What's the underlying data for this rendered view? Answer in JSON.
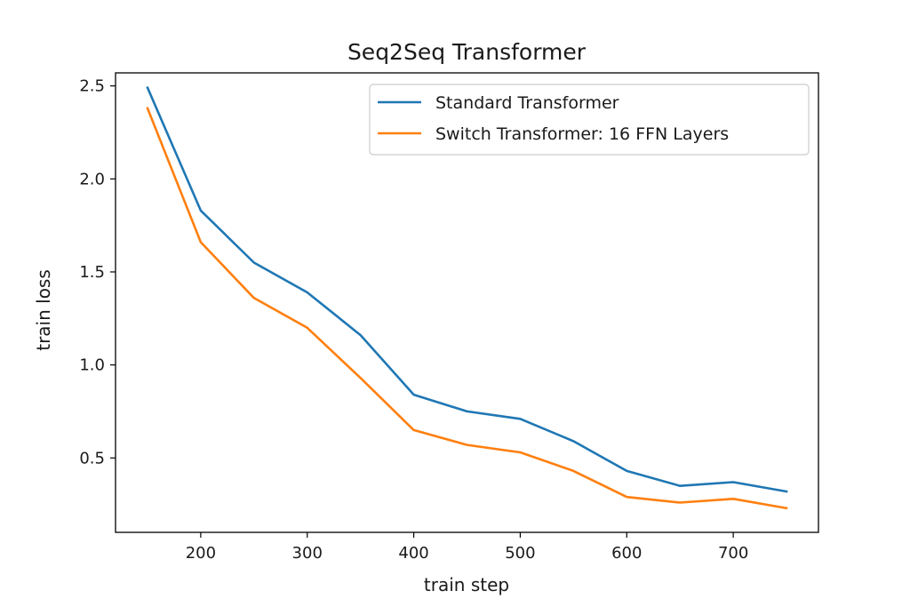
{
  "chart_data": {
    "type": "line",
    "title": "Seq2Seq Transformer",
    "xlabel": "train step",
    "ylabel": "train loss",
    "xlim": [
      120,
      780
    ],
    "ylim": [
      0.1,
      2.57
    ],
    "xticks": [
      200,
      300,
      400,
      500,
      600,
      700
    ],
    "yticks": [
      0.5,
      1.0,
      1.5,
      2.0,
      2.5
    ],
    "x": [
      150,
      200,
      250,
      300,
      350,
      400,
      450,
      500,
      550,
      600,
      650,
      700,
      750
    ],
    "series": [
      {
        "name": "Standard Transformer",
        "color": "#1f77b4",
        "values": [
          2.49,
          1.83,
          1.55,
          1.39,
          1.16,
          0.84,
          0.75,
          0.71,
          0.59,
          0.43,
          0.35,
          0.37,
          0.32
        ]
      },
      {
        "name": "Switch Transformer: 16 FFN Layers",
        "color": "#ff7f0e",
        "values": [
          2.38,
          1.66,
          1.36,
          1.2,
          0.93,
          0.65,
          0.57,
          0.53,
          0.43,
          0.29,
          0.26,
          0.28,
          0.23
        ]
      }
    ],
    "grid": false,
    "legend_position": "upper-right"
  }
}
